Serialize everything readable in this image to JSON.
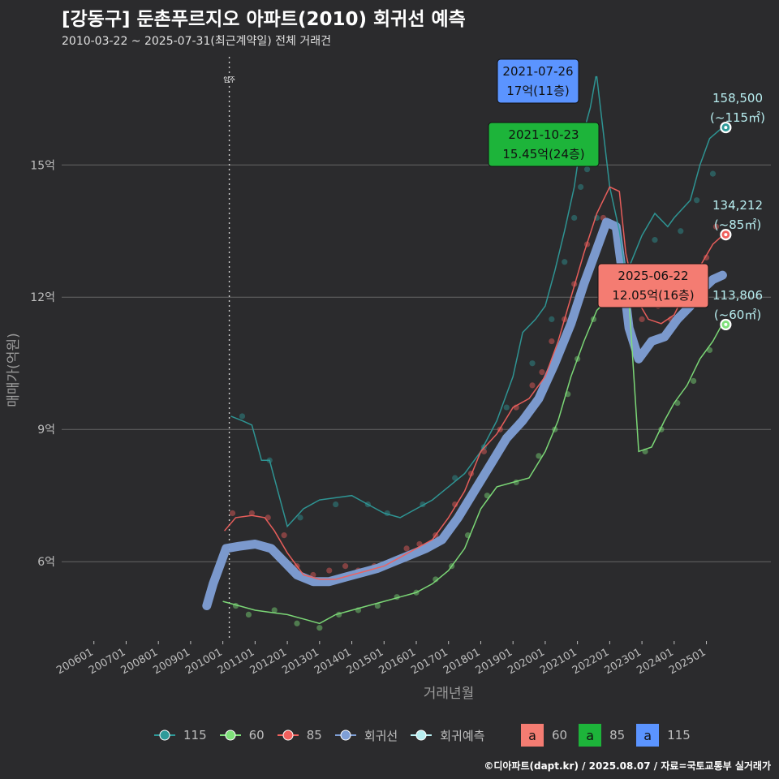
{
  "title": "[강동구] 둔촌푸르지오 아파트(2010) 회귀선 예측",
  "subtitle": "2010-03-22 ~ 2025-07-31(최근계약일) 전체 거래건",
  "footer": "©디아파트(dapt.kr) / 2025.08.07 / 자료=국토교통부 실거래가",
  "colors": {
    "s115": "#2e9a99",
    "s60": "#7fe07a",
    "s85": "#f0605d",
    "regression": "#7f9fd6",
    "forecast": "#b8eef0",
    "label115": "#5b94ff",
    "label85": "#1db43a",
    "label60": "#f47c72",
    "bg": "#2b2b2d",
    "grid": "#666666"
  },
  "chart_data": {
    "type": "scatter",
    "xlabel": "거래년월",
    "ylabel": "매매가(억원)",
    "x_tick_labels": [
      "200601",
      "200701",
      "200801",
      "200901",
      "201001",
      "201101",
      "201201",
      "201301",
      "201401",
      "201501",
      "201601",
      "201701",
      "201801",
      "201901",
      "202001",
      "202101",
      "202201",
      "202301",
      "202401",
      "202501"
    ],
    "x_ticks_year": [
      2006,
      2007,
      2008,
      2009,
      2010,
      2011,
      2012,
      2013,
      2014,
      2015,
      2016,
      2017,
      2018,
      2019,
      2020,
      2021,
      2022,
      2023,
      2024,
      2025
    ],
    "xlim": [
      2005.0,
      2027.0
    ],
    "ylim": [
      4.2,
      17.6
    ],
    "y_tick_values": [
      6,
      9,
      12,
      15
    ],
    "y_tick_labels": [
      "6억",
      "9억",
      "12억",
      "15억"
    ],
    "move_in": {
      "x": 2010.2,
      "label": "입주"
    },
    "series": [
      {
        "name": "115",
        "color": "#2e9a99",
        "line": [
          [
            2010.25,
            9.3
          ],
          [
            2010.6,
            9.2
          ],
          [
            2010.9,
            9.1
          ],
          [
            2011.2,
            8.3
          ],
          [
            2011.45,
            8.3
          ],
          [
            2012,
            6.8
          ],
          [
            2012.5,
            7.2
          ],
          [
            2013,
            7.4
          ],
          [
            2013.5,
            7.45
          ],
          [
            2014,
            7.5
          ],
          [
            2014.5,
            7.3
          ],
          [
            2015,
            7.1
          ],
          [
            2015.5,
            7.0
          ],
          [
            2016,
            7.2
          ],
          [
            2016.5,
            7.4
          ],
          [
            2017,
            7.7
          ],
          [
            2017.5,
            8.0
          ],
          [
            2018,
            8.5
          ],
          [
            2018.5,
            9.2
          ],
          [
            2019,
            10.2
          ],
          [
            2019.3,
            11.2
          ],
          [
            2019.7,
            11.5
          ],
          [
            2020,
            11.8
          ],
          [
            2020.3,
            12.6
          ],
          [
            2020.6,
            13.5
          ],
          [
            2020.9,
            14.5
          ],
          [
            2021.1,
            15.5
          ],
          [
            2021.4,
            16.3
          ],
          [
            2021.57,
            17.0
          ],
          [
            2021.6,
            17.0
          ],
          [
            2022.0,
            14.5
          ],
          [
            2022.3,
            13.5
          ],
          [
            2022.5,
            12.5
          ],
          [
            2023.0,
            13.4
          ],
          [
            2023.4,
            13.9
          ],
          [
            2023.8,
            13.6
          ],
          [
            2024.0,
            13.8
          ],
          [
            2024.5,
            14.2
          ],
          [
            2024.8,
            15.0
          ],
          [
            2025.1,
            15.6
          ],
          [
            2025.5,
            15.85
          ]
        ],
        "points": [
          [
            2011.45,
            8.3
          ],
          [
            2010.6,
            9.3
          ],
          [
            2012.4,
            7.0
          ],
          [
            2013.5,
            7.3
          ],
          [
            2014.5,
            7.3
          ],
          [
            2015.1,
            7.1
          ],
          [
            2016.2,
            7.3
          ],
          [
            2017.2,
            7.9
          ],
          [
            2018.1,
            8.6
          ],
          [
            2018.8,
            9.5
          ],
          [
            2019.6,
            10.5
          ],
          [
            2020.2,
            11.5
          ],
          [
            2020.6,
            12.8
          ],
          [
            2020.9,
            13.8
          ],
          [
            2021.1,
            14.5
          ],
          [
            2021.3,
            14.9
          ],
          [
            2021.6,
            13.8
          ],
          [
            2022.6,
            12.6
          ],
          [
            2023.4,
            13.3
          ],
          [
            2024.2,
            13.5
          ],
          [
            2024.7,
            14.2
          ],
          [
            2025.2,
            14.8
          ]
        ]
      },
      {
        "name": "60",
        "color": "#7fe07a",
        "line": [
          [
            2010.0,
            5.1
          ],
          [
            2010.5,
            5.0
          ],
          [
            2011.0,
            4.9
          ],
          [
            2011.5,
            4.85
          ],
          [
            2012.0,
            4.8
          ],
          [
            2012.5,
            4.7
          ],
          [
            2013.0,
            4.6
          ],
          [
            2013.5,
            4.8
          ],
          [
            2014.0,
            4.9
          ],
          [
            2014.5,
            5.0
          ],
          [
            2015.0,
            5.1
          ],
          [
            2015.5,
            5.2
          ],
          [
            2016.0,
            5.3
          ],
          [
            2016.5,
            5.5
          ],
          [
            2017.0,
            5.8
          ],
          [
            2017.5,
            6.3
          ],
          [
            2018.0,
            7.2
          ],
          [
            2018.5,
            7.7
          ],
          [
            2019.0,
            7.8
          ],
          [
            2019.5,
            7.9
          ],
          [
            2020.0,
            8.5
          ],
          [
            2020.4,
            9.2
          ],
          [
            2020.8,
            10.2
          ],
          [
            2021.2,
            11.0
          ],
          [
            2021.6,
            11.7
          ],
          [
            2022.0,
            12.0
          ],
          [
            2022.3,
            12.1
          ],
          [
            2022.6,
            11.9
          ],
          [
            2022.9,
            8.5
          ],
          [
            2023.3,
            8.6
          ],
          [
            2023.7,
            9.2
          ],
          [
            2024.0,
            9.6
          ],
          [
            2024.4,
            10.0
          ],
          [
            2024.8,
            10.6
          ],
          [
            2025.2,
            11.0
          ],
          [
            2025.5,
            11.4
          ]
        ],
        "points": [
          [
            2010.4,
            5.0
          ],
          [
            2010.8,
            4.8
          ],
          [
            2011.6,
            4.9
          ],
          [
            2012.3,
            4.6
          ],
          [
            2013.0,
            4.5
          ],
          [
            2013.6,
            4.8
          ],
          [
            2014.2,
            4.9
          ],
          [
            2014.8,
            5.0
          ],
          [
            2015.4,
            5.2
          ],
          [
            2016.0,
            5.3
          ],
          [
            2016.6,
            5.6
          ],
          [
            2017.1,
            5.9
          ],
          [
            2017.6,
            6.6
          ],
          [
            2018.2,
            7.5
          ],
          [
            2019.1,
            7.8
          ],
          [
            2019.8,
            8.4
          ],
          [
            2020.3,
            9.0
          ],
          [
            2020.7,
            9.8
          ],
          [
            2021.0,
            10.6
          ],
          [
            2021.5,
            11.5
          ],
          [
            2023.1,
            8.5
          ],
          [
            2023.6,
            9.0
          ],
          [
            2024.1,
            9.6
          ],
          [
            2024.6,
            10.1
          ],
          [
            2025.1,
            10.8
          ]
        ]
      },
      {
        "name": "85",
        "color": "#f0605d",
        "line": [
          [
            2010.05,
            6.7
          ],
          [
            2010.4,
            7.0
          ],
          [
            2010.9,
            7.05
          ],
          [
            2011.3,
            7.0
          ],
          [
            2011.6,
            6.7
          ],
          [
            2012.0,
            6.2
          ],
          [
            2012.5,
            5.7
          ],
          [
            2013.0,
            5.6
          ],
          [
            2013.5,
            5.6
          ],
          [
            2014.0,
            5.7
          ],
          [
            2014.5,
            5.8
          ],
          [
            2015.0,
            5.9
          ],
          [
            2015.5,
            6.1
          ],
          [
            2016.0,
            6.3
          ],
          [
            2016.5,
            6.5
          ],
          [
            2017.0,
            7.0
          ],
          [
            2017.5,
            7.6
          ],
          [
            2018.0,
            8.5
          ],
          [
            2018.5,
            8.9
          ],
          [
            2019.0,
            9.5
          ],
          [
            2019.5,
            9.7
          ],
          [
            2020.0,
            10.2
          ],
          [
            2020.4,
            11.0
          ],
          [
            2020.8,
            12.0
          ],
          [
            2021.2,
            13.0
          ],
          [
            2021.6,
            13.9
          ],
          [
            2022.0,
            14.5
          ],
          [
            2022.3,
            14.4
          ],
          [
            2022.5,
            13.0
          ],
          [
            2022.8,
            12.0
          ],
          [
            2023.2,
            11.5
          ],
          [
            2023.6,
            11.4
          ],
          [
            2024.0,
            11.6
          ],
          [
            2024.4,
            12.2
          ],
          [
            2024.8,
            12.7
          ],
          [
            2025.2,
            13.2
          ],
          [
            2025.5,
            13.4
          ]
        ],
        "points": [
          [
            2010.3,
            7.1
          ],
          [
            2010.9,
            7.1
          ],
          [
            2011.4,
            7.0
          ],
          [
            2011.9,
            6.6
          ],
          [
            2012.3,
            5.9
          ],
          [
            2012.8,
            5.7
          ],
          [
            2013.3,
            5.8
          ],
          [
            2013.8,
            5.9
          ],
          [
            2014.2,
            5.8
          ],
          [
            2014.7,
            5.9
          ],
          [
            2015.2,
            6.0
          ],
          [
            2015.7,
            6.3
          ],
          [
            2016.1,
            6.4
          ],
          [
            2016.6,
            6.6
          ],
          [
            2017.2,
            7.3
          ],
          [
            2017.7,
            8.0
          ],
          [
            2018.1,
            8.5
          ],
          [
            2018.6,
            9.0
          ],
          [
            2019.1,
            9.5
          ],
          [
            2019.6,
            10.0
          ],
          [
            2019.9,
            10.3
          ],
          [
            2020.2,
            11.0
          ],
          [
            2020.6,
            11.5
          ],
          [
            2020.9,
            12.3
          ],
          [
            2021.3,
            13.2
          ],
          [
            2021.8,
            13.8
          ],
          [
            2022.1,
            12.6
          ],
          [
            2022.6,
            12.0
          ],
          [
            2023.0,
            11.5
          ],
          [
            2023.5,
            11.8
          ],
          [
            2023.9,
            11.5
          ],
          [
            2024.3,
            12.0
          ],
          [
            2024.7,
            12.5
          ],
          [
            2025.0,
            12.9
          ],
          [
            2025.3,
            13.6
          ]
        ]
      }
    ],
    "regression": {
      "name": "회귀선",
      "color": "#7f9fd6",
      "points": [
        [
          2009.5,
          5.0
        ],
        [
          2009.7,
          5.5
        ],
        [
          2009.9,
          5.9
        ],
        [
          2010.1,
          6.3
        ],
        [
          2010.5,
          6.35
        ],
        [
          2011.0,
          6.4
        ],
        [
          2011.5,
          6.3
        ],
        [
          2011.9,
          6.0
        ],
        [
          2012.3,
          5.7
        ],
        [
          2012.8,
          5.55
        ],
        [
          2013.3,
          5.55
        ],
        [
          2013.8,
          5.65
        ],
        [
          2014.3,
          5.75
        ],
        [
          2014.8,
          5.85
        ],
        [
          2015.3,
          6.0
        ],
        [
          2015.8,
          6.15
        ],
        [
          2016.3,
          6.3
        ],
        [
          2016.8,
          6.5
        ],
        [
          2017.3,
          7.0
        ],
        [
          2017.8,
          7.6
        ],
        [
          2018.3,
          8.2
        ],
        [
          2018.8,
          8.8
        ],
        [
          2019.3,
          9.2
        ],
        [
          2019.8,
          9.7
        ],
        [
          2020.3,
          10.5
        ],
        [
          2020.8,
          11.4
        ],
        [
          2021.2,
          12.3
        ],
        [
          2021.6,
          13.1
        ],
        [
          2021.9,
          13.7
        ],
        [
          2022.2,
          13.6
        ],
        [
          2022.4,
          12.5
        ],
        [
          2022.6,
          11.3
        ],
        [
          2022.9,
          10.6
        ],
        [
          2023.3,
          11.0
        ],
        [
          2023.7,
          11.1
        ],
        [
          2024.1,
          11.5
        ],
        [
          2024.5,
          11.8
        ],
        [
          2024.9,
          12.2
        ],
        [
          2025.2,
          12.4
        ],
        [
          2025.5,
          12.5
        ]
      ]
    },
    "forecast_points": [
      {
        "area": "115",
        "x": 2025.6,
        "y": 15.85,
        "value_label": "158,500",
        "size_label": "(~115㎡)",
        "color": "#2e9a99"
      },
      {
        "area": "85",
        "x": 2025.6,
        "y": 13.42,
        "value_label": "134,212",
        "size_label": "(~85㎡)",
        "color": "#f0605d"
      },
      {
        "area": "60",
        "x": 2025.6,
        "y": 11.38,
        "value_label": "113,806",
        "size_label": "(~60㎡)",
        "color": "#7fe07a"
      }
    ],
    "annotations": [
      {
        "date": "2021-07-26",
        "price": "17억(11층)",
        "area": "115",
        "x": 2021.57,
        "y": 17.0,
        "color": "#5b94ff"
      },
      {
        "date": "2021-10-23",
        "price": "15.45억(24층)",
        "area": "85",
        "x": 2021.8,
        "y": 15.45,
        "color": "#1db43a"
      },
      {
        "date": "2025-06-22",
        "price": "12.05억(16층)",
        "area": "60",
        "x": 2025.47,
        "y": 12.05,
        "color": "#f47c72"
      }
    ]
  },
  "legend": {
    "items": [
      {
        "label": "115",
        "color": "#2e9a99"
      },
      {
        "label": "60",
        "color": "#7fe07a"
      },
      {
        "label": "85",
        "color": "#f0605d"
      },
      {
        "label": "회귀선",
        "color": "#7f9fd6"
      },
      {
        "label": "회귀예측",
        "color": "#b8eef0"
      }
    ],
    "label_items": [
      {
        "glyph": "a",
        "label": "60",
        "color": "#f47c72"
      },
      {
        "glyph": "a",
        "label": "85",
        "color": "#1db43a"
      },
      {
        "glyph": "a",
        "label": "115",
        "color": "#5b94ff"
      }
    ]
  }
}
